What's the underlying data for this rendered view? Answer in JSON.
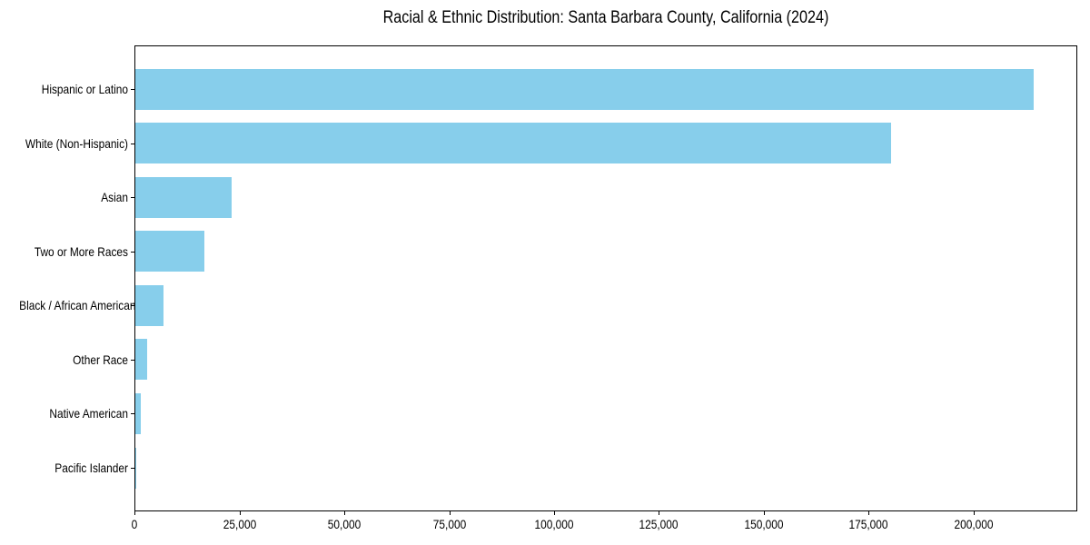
{
  "chart_data": {
    "type": "bar",
    "orientation": "horizontal",
    "title": "Racial & Ethnic Distribution: Santa Barbara County, California (2024)",
    "categories": [
      "Hispanic or Latino",
      "White (Non-Hispanic)",
      "Asian",
      "Two or More Races",
      "Black / African American",
      "Other Race",
      "Native American",
      "Pacific Islander"
    ],
    "values": [
      214000,
      180000,
      23000,
      16500,
      6800,
      2800,
      1300,
      300
    ],
    "xlabel": "",
    "ylabel": "",
    "xlim": [
      0,
      224700
    ],
    "x_ticks": [
      0,
      25000,
      50000,
      75000,
      100000,
      125000,
      150000,
      175000,
      200000
    ],
    "x_tick_labels": [
      "0",
      "25,000",
      "50,000",
      "75,000",
      "100,000",
      "125,000",
      "150,000",
      "175,000",
      "200,000"
    ],
    "bar_color": "#87CEEB",
    "background_color": "#FFFFFF",
    "axis_color": "#000000",
    "grid": false,
    "legend": false
  }
}
